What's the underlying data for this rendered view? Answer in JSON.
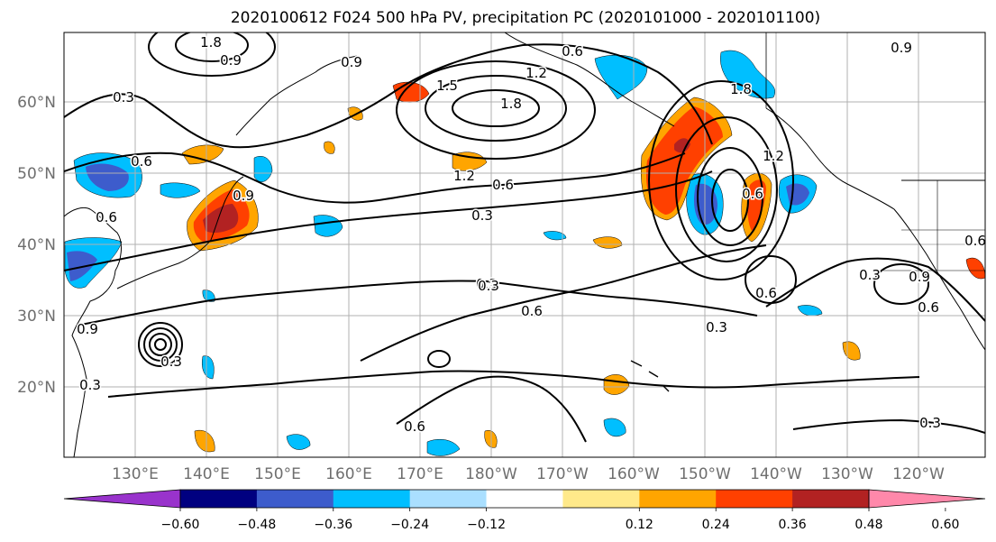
{
  "title": "2020100612 F024 500 hPa PV, precipitation PC (2020101000 - 2020101100)",
  "lon_labels": [
    "130°E",
    "140°E",
    "150°E",
    "160°E",
    "170°E",
    "180°W",
    "170°W",
    "160°W",
    "150°W",
    "140°W",
    "130°W",
    "120°W"
  ],
  "lat_labels": [
    "60°N",
    "50°N",
    "40°N",
    "30°N",
    "20°N"
  ],
  "colorbar": {
    "ticks": [
      "−0.60",
      "−0.48",
      "−0.36",
      "−0.24",
      "−0.12",
      "0.12",
      "0.24",
      "0.36",
      "0.48",
      "0.60"
    ],
    "colors": [
      "#9933cc",
      "#000080",
      "#3d5ccc",
      "#00bfff",
      "#aadfff",
      "#ffffff",
      "#ffe98a",
      "#ffa500",
      "#ff4000",
      "#b22222",
      "#ff88aa"
    ]
  },
  "contour_labels": [
    "1.8",
    "0.9",
    "0.3",
    "0.6",
    "0.9",
    "1.5",
    "1.2",
    "1.8",
    "0.6",
    "0.9",
    "0.6",
    "0.9",
    "1.8",
    "1.2",
    "0.6",
    "0.3",
    "0.3",
    "0.6",
    "0.3",
    "0.6",
    "0.3",
    "0.6",
    "0.3",
    "0.9",
    "0.6",
    "0.3",
    "0.9",
    "0.6",
    "0.3",
    "0.3",
    "1.2",
    "0.6"
  ],
  "colors": {
    "contour": "#000000",
    "coast": "#000000",
    "grid": "#b0b0b0",
    "tick_label": "#6e6e6e"
  }
}
